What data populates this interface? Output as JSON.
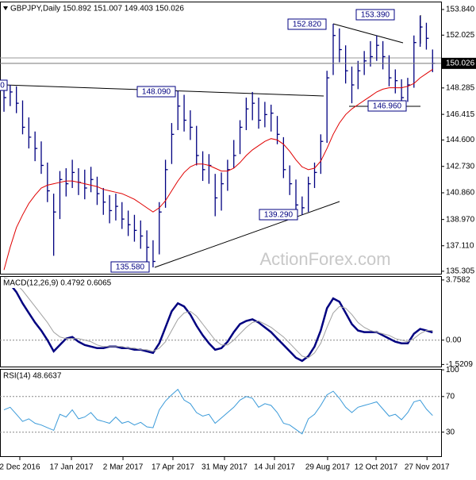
{
  "chart_data": [
    {
      "type": "ohlc",
      "title": "GBPJPY,Daily  150.892 151.007 149.403 150.026",
      "watermark": "ActionForex.com",
      "color": "#000080",
      "xlim": [
        -0.64,
        70.37
      ],
      "xticks": [
        {
          "value": 2.55,
          "label": "2 Dec 2016"
        },
        {
          "value": 10.86,
          "label": "17 Jan 2017"
        },
        {
          "value": 19.16,
          "label": "2 Mar 2017"
        },
        {
          "value": 27.2,
          "label": "17 Apr 2017"
        },
        {
          "value": 35.5,
          "label": "31 May 2017"
        },
        {
          "value": 43.55,
          "label": "14 Jul 2017"
        },
        {
          "value": 52.1,
          "label": "29 Aug 2017"
        },
        {
          "value": 59.9,
          "label": "12 Oct 2017"
        },
        {
          "value": 68.1,
          "label": "27 Nov 2017"
        }
      ],
      "ylim": [
        135.13,
        154.4
      ],
      "yticks": [
        {
          "value": 153.84,
          "label": "153.840"
        },
        {
          "value": 152.025,
          "label": "152.025"
        },
        {
          "value": 148.285,
          "label": "148.285"
        },
        {
          "value": 146.415,
          "label": "146.415"
        },
        {
          "value": 144.6,
          "label": "144.600"
        },
        {
          "value": 142.73,
          "label": "142.730"
        },
        {
          "value": 140.86,
          "label": "140.860"
        },
        {
          "value": 138.97,
          "label": "138.970"
        },
        {
          "value": 137.11,
          "label": "137.110"
        },
        {
          "value": 135.305,
          "label": "135.305"
        }
      ],
      "high": [
        148.3,
        148.5,
        148.4,
        147.4,
        146.2,
        145.2,
        144.5,
        143.0,
        140.8,
        142.4,
        142.6,
        143.2,
        142.6,
        142.5,
        142.7,
        142.0,
        141.2,
        140.7,
        140.8,
        140.2,
        139.6,
        139.3,
        138.9,
        138.2,
        137.5,
        140.2,
        143.2,
        145.8,
        148.09,
        147.8,
        146.7,
        145.6,
        143.8,
        143.6,
        142.2,
        142.3,
        143.2,
        144.6,
        146.0,
        147.6,
        148.0,
        147.6,
        147.3,
        147.1,
        146.3,
        144.8,
        142.8,
        141.8,
        140.6,
        142.0,
        143.0,
        145.0,
        149.5,
        152.82,
        152.5,
        151.3,
        149.8,
        150.2,
        150.9,
        151.6,
        152.0,
        151.6,
        150.6,
        149.6,
        148.9,
        149.0,
        152.0,
        153.39,
        152.9,
        151.007
      ],
      "low": [
        146.6,
        147.0,
        146.5,
        145.0,
        144.0,
        143.1,
        142.2,
        140.2,
        136.4,
        139.0,
        140.6,
        141.2,
        140.7,
        140.4,
        140.9,
        140.0,
        139.3,
        138.7,
        138.9,
        138.3,
        137.8,
        137.4,
        136.9,
        136.0,
        135.58,
        136.5,
        139.8,
        142.9,
        145.3,
        145.2,
        144.6,
        142.8,
        141.7,
        141.5,
        139.2,
        139.6,
        141.0,
        142.6,
        143.6,
        145.3,
        146.0,
        145.4,
        145.5,
        145.2,
        144.3,
        141.9,
        140.7,
        139.5,
        139.29,
        139.5,
        141.2,
        142.2,
        144.4,
        149.2,
        150.1,
        148.6,
        147.2,
        148.2,
        149.2,
        149.8,
        150.2,
        149.6,
        148.4,
        147.9,
        146.96,
        147.3,
        148.3,
        151.2,
        151.0,
        149.403
      ],
      "close": [
        147.6,
        148.0,
        147.2,
        145.5,
        144.8,
        144.0,
        142.8,
        141.0,
        139.5,
        141.8,
        141.5,
        142.3,
        141.6,
        141.2,
        141.8,
        140.8,
        140.2,
        139.6,
        139.9,
        139.0,
        138.6,
        138.2,
        137.8,
        137.0,
        136.0,
        139.5,
        142.5,
        145.0,
        147.0,
        146.0,
        145.5,
        143.5,
        142.5,
        142.8,
        140.5,
        141.5,
        142.5,
        143.5,
        145.5,
        146.8,
        147.2,
        146.0,
        146.4,
        146.5,
        145.0,
        142.5,
        141.5,
        140.0,
        139.8,
        141.5,
        142.3,
        144.5,
        149.0,
        152.0,
        151.0,
        149.5,
        148.5,
        149.5,
        150.2,
        150.5,
        151.3,
        150.5,
        149.0,
        148.8,
        147.6,
        148.5,
        151.5,
        152.6,
        151.8,
        150.026
      ],
      "ma": {
        "color": "#e00000",
        "values": [
          135.4,
          137.0,
          138.4,
          139.3,
          140.1,
          140.7,
          141.2,
          141.4,
          141.5,
          141.6,
          141.7,
          141.7,
          141.6,
          141.5,
          141.4,
          141.3,
          141.1,
          141.0,
          140.9,
          140.8,
          140.6,
          140.4,
          140.1,
          139.8,
          139.5,
          139.8,
          140.3,
          141.0,
          141.7,
          142.3,
          142.7,
          142.9,
          142.9,
          142.8,
          142.6,
          142.4,
          142.4,
          142.6,
          143.0,
          143.5,
          143.9,
          144.2,
          144.5,
          144.7,
          144.6,
          144.3,
          143.8,
          143.2,
          142.7,
          142.5,
          142.6,
          143.1,
          144.0,
          145.0,
          145.8,
          146.4,
          146.8,
          147.1,
          147.4,
          147.7,
          148.0,
          148.2,
          148.3,
          148.3,
          148.3,
          148.4,
          148.6,
          149.0,
          149.3,
          149.6
        ]
      },
      "annotations": [
        "152.820",
        "153.390",
        "148.090",
        "146.960",
        "139.290",
        "135.580",
        "0"
      ]
    },
    {
      "type": "line",
      "title": "MACD(12,26,9) 0.4792 0.6065",
      "ylim": [
        -1.65,
        4.0
      ],
      "yticks": [
        3.7582,
        {
          "value": 0,
          "label": "0.00"
        },
        -1.5209
      ],
      "levels": [
        0
      ],
      "series": [
        {
          "color": "#000080",
          "values": [
            3.7,
            3.5,
            3.0,
            2.3,
            1.7,
            1.1,
            0.6,
            0.0,
            -0.7,
            -0.3,
            0.1,
            0.2,
            -0.1,
            -0.3,
            -0.4,
            -0.5,
            -0.5,
            -0.4,
            -0.4,
            -0.5,
            -0.5,
            -0.6,
            -0.6,
            -0.7,
            -0.8,
            -0.2,
            0.8,
            1.8,
            2.3,
            2.1,
            1.6,
            0.9,
            0.3,
            -0.2,
            -0.6,
            -0.5,
            -0.1,
            0.5,
            1.0,
            1.2,
            1.3,
            1.1,
            0.8,
            0.5,
            0.1,
            -0.3,
            -0.7,
            -1.1,
            -1.3,
            -1.0,
            -0.4,
            0.6,
            2.0,
            2.6,
            2.4,
            1.7,
            1.0,
            0.6,
            0.5,
            0.5,
            0.5,
            0.3,
            0.1,
            -0.1,
            -0.2,
            -0.2,
            0.4,
            0.7,
            0.6,
            0.4792
          ]
        },
        {
          "color": "#a0a0a0",
          "values": [
            3.9,
            3.8,
            3.5,
            3.1,
            2.6,
            2.1,
            1.6,
            1.1,
            0.5,
            0.2,
            0.1,
            0.1,
            0.1,
            0.0,
            -0.1,
            -0.3,
            -0.4,
            -0.4,
            -0.4,
            -0.4,
            -0.5,
            -0.5,
            -0.6,
            -0.6,
            -0.7,
            -0.5,
            -0.1,
            0.6,
            1.3,
            1.7,
            1.8,
            1.5,
            1.0,
            0.5,
            0.0,
            -0.3,
            -0.3,
            0.0,
            0.4,
            0.8,
            1.1,
            1.2,
            1.0,
            0.8,
            0.5,
            0.2,
            -0.2,
            -0.6,
            -1.0,
            -1.1,
            -0.8,
            -0.2,
            0.8,
            1.7,
            2.1,
            2.0,
            1.6,
            1.1,
            0.8,
            0.6,
            0.5,
            0.4,
            0.3,
            0.1,
            0.0,
            -0.1,
            0.1,
            0.4,
            0.6,
            0.6065
          ]
        }
      ]
    },
    {
      "type": "line",
      "title": "RSI(14) 48.6637",
      "ylim": [
        3,
        101
      ],
      "yticks": [
        100,
        70,
        30
      ],
      "levels": [
        70,
        30
      ],
      "series": [
        {
          "color": "#3a9ad9",
          "values": [
            55,
            58,
            50,
            42,
            45,
            40,
            38,
            35,
            32,
            50,
            47,
            55,
            45,
            47,
            52,
            44,
            42,
            40,
            47,
            40,
            42,
            38,
            41,
            36,
            35,
            55,
            65,
            72,
            78,
            66,
            62,
            52,
            48,
            50,
            40,
            46,
            52,
            58,
            66,
            70,
            68,
            58,
            62,
            60,
            52,
            40,
            38,
            33,
            28,
            45,
            50,
            60,
            72,
            76,
            68,
            58,
            52,
            58,
            60,
            62,
            64,
            56,
            48,
            50,
            44,
            52,
            64,
            66,
            56,
            48.6637
          ]
        }
      ]
    }
  ]
}
